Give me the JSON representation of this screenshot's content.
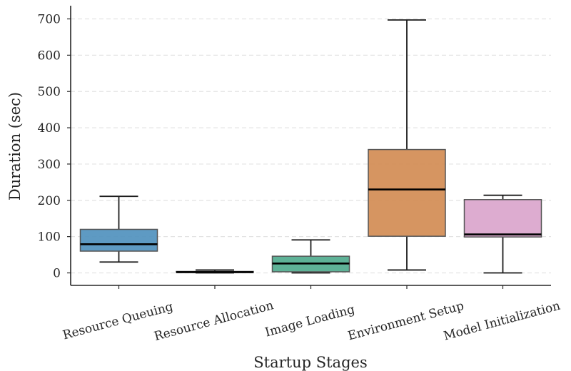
{
  "chart_data": {
    "type": "box",
    "xlabel": "Startup Stages",
    "ylabel": "Duration (sec)",
    "ylim": [
      -35,
      730
    ],
    "yticks": [
      0,
      100,
      200,
      300,
      400,
      500,
      600,
      700
    ],
    "grid": "horizontal-dashed",
    "categories": [
      "Resource Queuing",
      "Resource Allocation",
      "Image Loading",
      "Environment Setup",
      "Model Initialization"
    ],
    "boxes": [
      {
        "whisker_low": 30,
        "q1": 60,
        "median": 79,
        "q3": 120,
        "whisker_high": 211,
        "color": "#4c8fbd"
      },
      {
        "whisker_low": 0,
        "q1": 1,
        "median": 2,
        "q3": 4,
        "whisker_high": 8,
        "color": "#5a7fa0"
      },
      {
        "whisker_low": 0,
        "q1": 3,
        "median": 26,
        "q3": 46,
        "whisker_high": 91,
        "color": "#4daa8c"
      },
      {
        "whisker_low": 8,
        "q1": 101,
        "median": 230,
        "q3": 340,
        "whisker_high": 697,
        "color": "#d18a50"
      },
      {
        "whisker_low": 0,
        "q1": 99,
        "median": 106,
        "q3": 202,
        "whisker_high": 214,
        "color": "#d9a3cb"
      }
    ]
  }
}
